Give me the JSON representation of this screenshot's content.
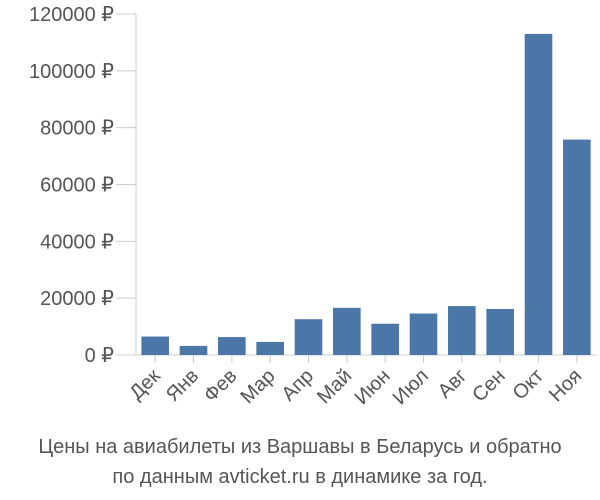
{
  "chart_data": {
    "type": "bar",
    "categories": [
      "Дек",
      "Янв",
      "Фев",
      "Мар",
      "Апр",
      "Май",
      "Июн",
      "Июл",
      "Авг",
      "Сен",
      "Окт",
      "Ноя"
    ],
    "values": [
      6500,
      3200,
      6300,
      4600,
      12600,
      16600,
      11000,
      14600,
      17200,
      16200,
      113000,
      75800
    ],
    "ylim": [
      0,
      120000
    ],
    "y_ticks": [
      0,
      20000,
      40000,
      60000,
      80000,
      100000,
      120000
    ],
    "y_tick_labels": [
      "0 ₽",
      "20000 ₽",
      "40000 ₽",
      "60000 ₽",
      "80000 ₽",
      "100000 ₽",
      "120000 ₽"
    ],
    "grid": false,
    "bar_color": "#4a76a8",
    "caption_line1": "Цены на авиабилеты из Варшавы в Беларусь и обратно",
    "caption_line2": "по данным avticket.ru в динамике за год."
  }
}
